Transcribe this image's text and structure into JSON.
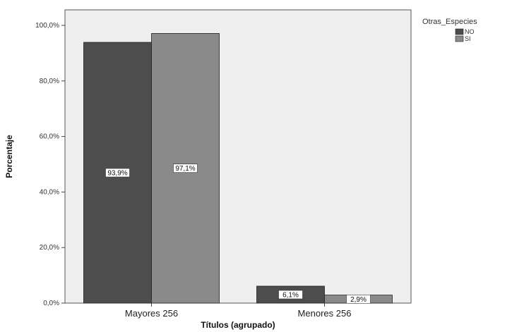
{
  "chart_data": {
    "type": "bar",
    "xlabel": "Títulos (agrupado)",
    "ylabel": "Porcentaje",
    "ylim": [
      0,
      100
    ],
    "yticks": [
      "0,0%",
      "20,0%",
      "40,0%",
      "60,0%",
      "80,0%",
      "100,0%"
    ],
    "ytick_values": [
      0,
      20,
      40,
      60,
      80,
      100
    ],
    "categories": [
      "Mayores 256",
      "Menores 256"
    ],
    "legend_title": "Otras_Especies",
    "legend_position": "top-right",
    "grid": false,
    "series": [
      {
        "name": "NO",
        "color": "#4d4d4d",
        "values": [
          93.9,
          6.1
        ],
        "labels": [
          "93,9%",
          "6,1%"
        ]
      },
      {
        "name": "SI",
        "color": "#8a8a8a",
        "values": [
          97.1,
          2.9
        ],
        "labels": [
          "97,1%",
          "2,9%"
        ]
      }
    ],
    "plot_background": "#efefef"
  }
}
